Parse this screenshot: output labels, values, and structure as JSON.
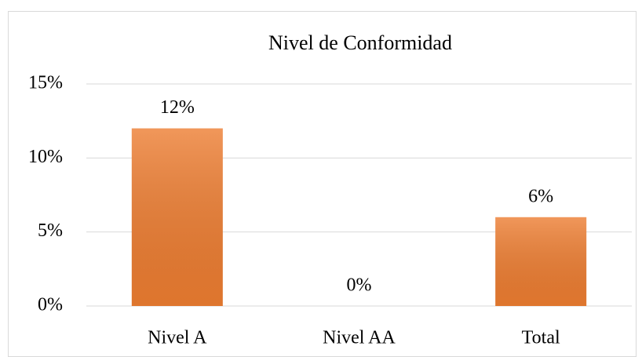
{
  "chart_data": {
    "type": "bar",
    "title": "Nivel de Conformidad",
    "categories": [
      "Nivel A",
      "Nivel AA",
      "Total"
    ],
    "values": [
      12,
      0,
      6
    ],
    "value_labels": [
      "12%",
      "0%",
      "6%"
    ],
    "color": "#ed7d31",
    "ylim": [
      0,
      15
    ],
    "yticks": [
      {
        "value": 0,
        "label": "0%"
      },
      {
        "value": 5,
        "label": "5%"
      },
      {
        "value": 10,
        "label": "10%"
      },
      {
        "value": 15,
        "label": "15%"
      }
    ],
    "grid": true
  }
}
